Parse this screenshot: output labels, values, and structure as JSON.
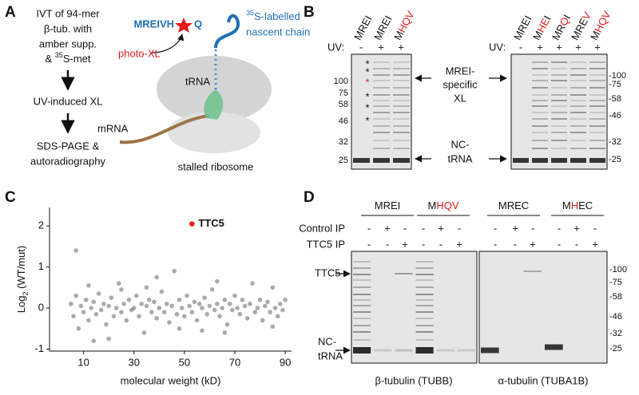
{
  "panel_a": {
    "label": "A",
    "step1": [
      "IVT of 94-mer",
      "β-tub. with",
      "amber supp."
    ],
    "step1_last": {
      "pre": "& ",
      "sup": "35",
      "post": "S-met"
    },
    "step2": "UV-induced XL",
    "step3": [
      "SDS-PAGE &",
      "autoradiography"
    ],
    "peptide": {
      "pre": "MREIVH",
      "post": "Q"
    },
    "chain": {
      "sup": "35",
      "line1": "S-labelled",
      "line2": "nascent chain"
    },
    "photo_xl": "photo-XL",
    "trna": "tRNA",
    "mrna": "mRNA",
    "caption": "stalled ribosome"
  },
  "panel_b": {
    "label": "B",
    "uv": "UV:",
    "asterisk": "*",
    "gel1": {
      "lanes": [
        [
          "MREI"
        ],
        [
          "MREI"
        ],
        [
          "M",
          "HQV"
        ]
      ],
      "uv": [
        "-",
        "+",
        "+"
      ],
      "markers": [
        "100",
        "75",
        "58",
        "46",
        "32",
        "25"
      ]
    },
    "gel2": {
      "lanes": [
        [
          "MREI"
        ],
        [
          "M",
          "HE",
          "I"
        ],
        [
          "MR",
          "Q",
          "I"
        ],
        [
          "MRE",
          "V"
        ],
        [
          "M",
          "HQV"
        ]
      ],
      "uv": [
        "-",
        "+",
        "+",
        "+",
        "+"
      ],
      "markers": [
        "-100",
        "-75",
        "-58",
        "-46",
        "-32",
        "-25"
      ]
    },
    "xl_label": [
      "MREI-",
      "specific",
      "XL"
    ],
    "nc_label": [
      "NC-",
      "tRNA"
    ]
  },
  "chart_data": {
    "type": "scatter",
    "label": "C",
    "xlabel": "molecular weight (kD)",
    "ylabel": {
      "pre": "Log",
      "sub": "2",
      "post": " (WT/mut)"
    },
    "xlim": [
      -3.5,
      92.5
    ],
    "ylim": [
      -1.05,
      2.45
    ],
    "xticks": [
      10,
      30,
      50,
      70,
      90
    ],
    "yticks": [
      -1,
      0,
      1,
      2
    ],
    "color": "#444444",
    "x": [
      5,
      6,
      7,
      7,
      8,
      9,
      10,
      11,
      12,
      13,
      14,
      15,
      16,
      17,
      18,
      19,
      20,
      21,
      22,
      23,
      24,
      25,
      26,
      27,
      28,
      29,
      30,
      31,
      32,
      33,
      34,
      35,
      36,
      37,
      38,
      39,
      40,
      41,
      42,
      43,
      44,
      45,
      46,
      47,
      48,
      49,
      50,
      51,
      52,
      53,
      54,
      55,
      56,
      57,
      58,
      59,
      60,
      61,
      62,
      63,
      64,
      65,
      66,
      67,
      68,
      69,
      70,
      71,
      72,
      73,
      74,
      75,
      76,
      77,
      78,
      79,
      80,
      81,
      82,
      83,
      84,
      85,
      86,
      87,
      88,
      89,
      90,
      20,
      14,
      12,
      48,
      63,
      57,
      35,
      25,
      66,
      85,
      39
    ],
    "values": [
      0.1,
      -0.2,
      1.4,
      0.3,
      -0.5,
      0.05,
      -0.1,
      0.2,
      -0.3,
      0.0,
      0.15,
      -0.15,
      0.35,
      -0.05,
      0.1,
      -0.4,
      0.05,
      0.25,
      -0.2,
      0.0,
      0.6,
      -0.1,
      0.1,
      -0.3,
      0.2,
      -0.05,
      0.0,
      0.3,
      -0.2,
      0.1,
      -0.6,
      0.05,
      0.2,
      -0.1,
      0.15,
      -0.25,
      0.0,
      0.4,
      -0.1,
      0.1,
      -0.35,
      0.05,
      0.9,
      -0.15,
      0.2,
      0.0,
      -0.2,
      0.3,
      0.05,
      -0.1,
      0.15,
      -0.3,
      0.1,
      0.0,
      0.25,
      -0.15,
      0.05,
      0.45,
      -0.05,
      0.1,
      -0.2,
      0.0,
      0.2,
      -0.4,
      0.1,
      -0.05,
      0.3,
      0.0,
      -0.15,
      0.2,
      0.05,
      -0.25,
      0.1,
      0.6,
      -0.1,
      0.0,
      0.2,
      -0.3,
      0.05,
      0.15,
      -0.1,
      0.5,
      0.0,
      -0.2,
      0.1,
      -0.05,
      0.2,
      -0.75,
      -0.8,
      0.55,
      -0.5,
      0.65,
      -0.55,
      0.5,
      0.45,
      -0.6,
      -0.45,
      0.75
    ],
    "highlight": {
      "label": "TTC5",
      "x": 53,
      "value": 2.05,
      "color": "#e31a1c"
    }
  },
  "panel_d": {
    "label": "D",
    "groups": [
      [
        "MREI"
      ],
      [
        "M",
        "HQV"
      ],
      [
        "MREC"
      ],
      [
        "M",
        "H",
        "EC"
      ]
    ],
    "rows": [
      {
        "name": "Control IP",
        "marks": [
          "-",
          "+",
          "-",
          "-",
          "+",
          "-",
          "-",
          "+",
          "-",
          "-",
          "+",
          "-"
        ]
      },
      {
        "name": "TTC5 IP",
        "marks": [
          "-",
          "-",
          "+",
          "-",
          "-",
          "+",
          "-",
          "-",
          "+",
          "-",
          "-",
          "+"
        ]
      }
    ],
    "markers": [
      "-100",
      "-75",
      "-58",
      "-46",
      "-32",
      "-25"
    ],
    "ttc5": "TTC5",
    "nc_label": [
      "NC-",
      "tRNA"
    ],
    "captions": [
      "β-tubulin (TUBB)",
      "α-tubulin (TUBA1B)"
    ]
  }
}
